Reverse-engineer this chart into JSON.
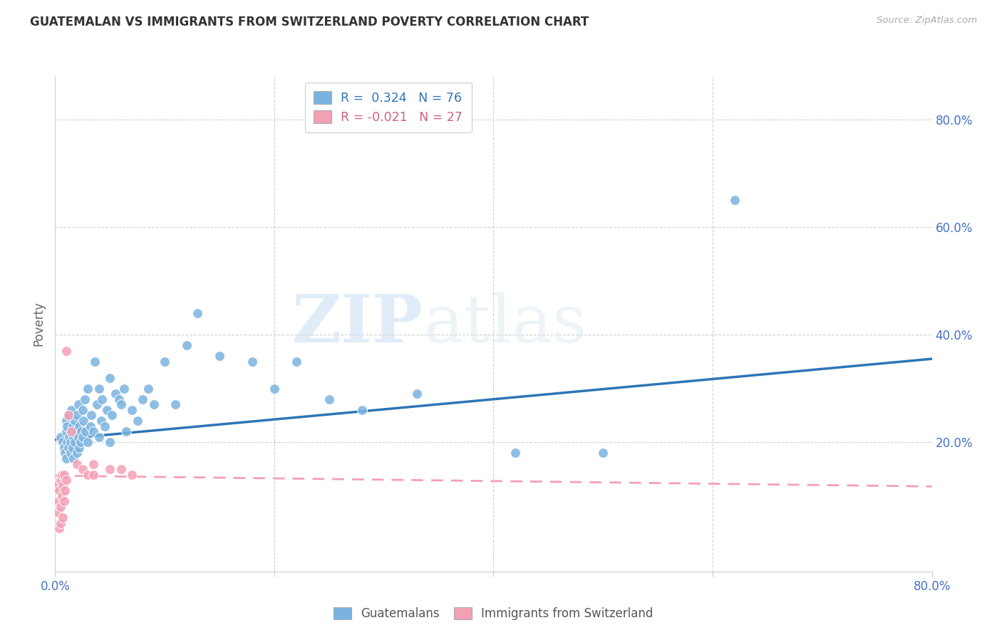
{
  "title": "GUATEMALAN VS IMMIGRANTS FROM SWITZERLAND POVERTY CORRELATION CHART",
  "source": "Source: ZipAtlas.com",
  "ylabel": "Poverty",
  "ytick_labels": [
    "80.0%",
    "60.0%",
    "40.0%",
    "20.0%"
  ],
  "ytick_values": [
    0.8,
    0.6,
    0.4,
    0.2
  ],
  "xmin": 0.0,
  "xmax": 0.8,
  "ymin": -0.04,
  "ymax": 0.88,
  "watermark_part1": "ZIP",
  "watermark_part2": "atlas",
  "legend1_text": "R =  0.324   N = 76",
  "legend2_text": "R = -0.021   N = 27",
  "blue_color": "#7ab3e0",
  "pink_color": "#f4a0b5",
  "blue_line_color": "#2e75b6",
  "pink_line_color": "#f4a0b5",
  "axis_label_color": "#4472c4",
  "guatemalans_x": [
    0.005,
    0.007,
    0.008,
    0.009,
    0.01,
    0.01,
    0.01,
    0.011,
    0.011,
    0.012,
    0.013,
    0.013,
    0.014,
    0.014,
    0.015,
    0.015,
    0.016,
    0.016,
    0.017,
    0.017,
    0.018,
    0.018,
    0.019,
    0.02,
    0.02,
    0.021,
    0.021,
    0.022,
    0.022,
    0.023,
    0.024,
    0.025,
    0.025,
    0.026,
    0.027,
    0.028,
    0.03,
    0.03,
    0.032,
    0.033,
    0.035,
    0.036,
    0.038,
    0.04,
    0.04,
    0.042,
    0.043,
    0.045,
    0.047,
    0.05,
    0.05,
    0.052,
    0.055,
    0.058,
    0.06,
    0.063,
    0.065,
    0.07,
    0.075,
    0.08,
    0.085,
    0.09,
    0.1,
    0.11,
    0.12,
    0.13,
    0.15,
    0.18,
    0.2,
    0.22,
    0.25,
    0.28,
    0.33,
    0.42,
    0.5,
    0.62
  ],
  "guatemalans_y": [
    0.21,
    0.2,
    0.19,
    0.18,
    0.22,
    0.24,
    0.17,
    0.2,
    0.23,
    0.19,
    0.21,
    0.25,
    0.18,
    0.2,
    0.22,
    0.26,
    0.19,
    0.23,
    0.21,
    0.17,
    0.24,
    0.2,
    0.22,
    0.18,
    0.25,
    0.21,
    0.27,
    0.19,
    0.23,
    0.2,
    0.22,
    0.21,
    0.26,
    0.24,
    0.28,
    0.22,
    0.2,
    0.3,
    0.23,
    0.25,
    0.22,
    0.35,
    0.27,
    0.21,
    0.3,
    0.24,
    0.28,
    0.23,
    0.26,
    0.2,
    0.32,
    0.25,
    0.29,
    0.28,
    0.27,
    0.3,
    0.22,
    0.26,
    0.24,
    0.28,
    0.3,
    0.27,
    0.35,
    0.27,
    0.38,
    0.44,
    0.36,
    0.35,
    0.3,
    0.35,
    0.28,
    0.26,
    0.29,
    0.18,
    0.18,
    0.65
  ],
  "swiss_x": [
    0.002,
    0.003,
    0.003,
    0.004,
    0.004,
    0.005,
    0.005,
    0.005,
    0.006,
    0.006,
    0.007,
    0.007,
    0.008,
    0.008,
    0.009,
    0.01,
    0.01,
    0.012,
    0.015,
    0.02,
    0.025,
    0.03,
    0.035,
    0.035,
    0.05,
    0.06,
    0.07
  ],
  "swiss_y": [
    0.12,
    0.09,
    0.07,
    0.04,
    0.11,
    0.05,
    0.08,
    0.13,
    0.14,
    0.1,
    0.06,
    0.12,
    0.09,
    0.14,
    0.11,
    0.13,
    0.37,
    0.25,
    0.22,
    0.16,
    0.15,
    0.14,
    0.14,
    0.16,
    0.15,
    0.15,
    0.14
  ],
  "blue_trendline_x": [
    0.0,
    0.8
  ],
  "blue_trendline_y": [
    0.205,
    0.355
  ],
  "pink_trendline_x": [
    0.0,
    0.8
  ],
  "pink_trendline_y": [
    0.138,
    0.118
  ]
}
